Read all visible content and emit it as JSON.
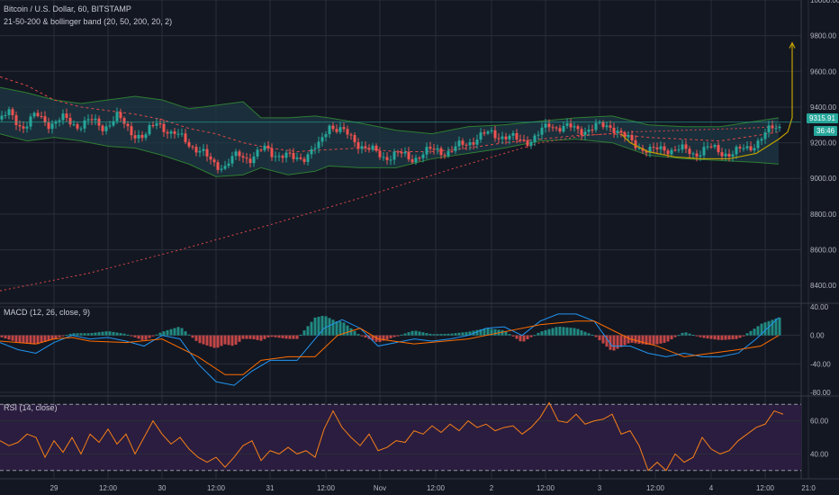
{
  "header": {
    "symbol": "Bitcoin / U.S. Dollar, 60, BITSTAMP",
    "study": "21-50-200 & bollinger band (20, 50, 200, 20, 2)"
  },
  "price_tags": {
    "last_price": "9315.91",
    "countdown": "36:46"
  },
  "panes": {
    "macd_label": "MACD (12, 26, close, 9)",
    "rsi_label": "RSI (14, close)"
  },
  "colors": {
    "background": "#131722",
    "grid": "#2a2e39",
    "up": "#26a69a",
    "down": "#ef5350",
    "bollinger_fill": "#1e3b46",
    "bollinger_line": "#2e7d32",
    "ma_red": "#e04848",
    "macd_line": "#2196f3",
    "signal_line": "#ff6d00",
    "rsi_line": "#f57f17",
    "rsi_bg": "#2b1d3f",
    "drawing": "#c0a000",
    "current_price_line": "#26a69a"
  },
  "chart_data": [
    {
      "type": "candlestick",
      "title": "Bitcoin / U.S. Dollar, 60, BITSTAMP",
      "ylim": [
        8300,
        10000
      ],
      "y_ticks": [
        "10000.00",
        "9800.00",
        "9600.00",
        "9400.00",
        "9200.00",
        "9000.00",
        "8800.00",
        "8600.00",
        "8400.00"
      ],
      "x_ticks": [
        "29",
        "12:00",
        "30",
        "12:00",
        "31",
        "12:00",
        "Nov",
        "12:00",
        "2",
        "12:00",
        "3",
        "12:00",
        "4",
        "12:00",
        "21:0"
      ],
      "last_price": 9315.91,
      "close_path": [
        [
          0,
          9330
        ],
        [
          10,
          9360
        ],
        [
          25,
          9290
        ],
        [
          40,
          9350
        ],
        [
          55,
          9310
        ],
        [
          70,
          9330
        ],
        [
          85,
          9300
        ],
        [
          100,
          9320
        ],
        [
          115,
          9290
        ],
        [
          130,
          9340
        ],
        [
          145,
          9270
        ],
        [
          160,
          9220
        ],
        [
          175,
          9330
        ],
        [
          190,
          9240
        ],
        [
          205,
          9230
        ],
        [
          220,
          9150
        ],
        [
          235,
          9100
        ],
        [
          250,
          9060
        ],
        [
          265,
          9140
        ],
        [
          280,
          9110
        ],
        [
          295,
          9170
        ],
        [
          310,
          9130
        ],
        [
          325,
          9110
        ],
        [
          340,
          9130
        ],
        [
          355,
          9180
        ],
        [
          365,
          9310
        ],
        [
          380,
          9260
        ],
        [
          395,
          9210
        ],
        [
          410,
          9160
        ],
        [
          425,
          9120
        ],
        [
          440,
          9140
        ],
        [
          455,
          9110
        ],
        [
          470,
          9140
        ],
        [
          485,
          9160
        ],
        [
          500,
          9150
        ],
        [
          515,
          9190
        ],
        [
          530,
          9230
        ],
        [
          545,
          9250
        ],
        [
          560,
          9240
        ],
        [
          575,
          9210
        ],
        [
          590,
          9220
        ],
        [
          600,
          9250
        ],
        [
          610,
          9300
        ],
        [
          625,
          9290
        ],
        [
          640,
          9270
        ],
        [
          655,
          9280
        ],
        [
          670,
          9290
        ],
        [
          680,
          9300
        ],
        [
          695,
          9220
        ],
        [
          710,
          9180
        ],
        [
          725,
          9150
        ],
        [
          740,
          9170
        ],
        [
          755,
          9160
        ],
        [
          770,
          9140
        ],
        [
          785,
          9170
        ],
        [
          800,
          9150
        ],
        [
          815,
          9140
        ],
        [
          830,
          9170
        ],
        [
          845,
          9220
        ],
        [
          860,
          9290
        ],
        [
          870,
          9300
        ]
      ],
      "bollinger_upper": [
        [
          0,
          9510
        ],
        [
          30,
          9480
        ],
        [
          60,
          9440
        ],
        [
          90,
          9420
        ],
        [
          120,
          9440
        ],
        [
          150,
          9460
        ],
        [
          180,
          9440
        ],
        [
          210,
          9390
        ],
        [
          240,
          9410
        ],
        [
          270,
          9430
        ],
        [
          290,
          9340
        ],
        [
          320,
          9340
        ],
        [
          350,
          9350
        ],
        [
          365,
          9340
        ],
        [
          400,
          9310
        ],
        [
          440,
          9270
        ],
        [
          480,
          9250
        ],
        [
          520,
          9290
        ],
        [
          560,
          9300
        ],
        [
          600,
          9320
        ],
        [
          640,
          9340
        ],
        [
          680,
          9350
        ],
        [
          720,
          9300
        ],
        [
          760,
          9290
        ],
        [
          800,
          9290
        ],
        [
          840,
          9320
        ],
        [
          865,
          9340
        ]
      ],
      "bollinger_lower": [
        [
          0,
          9250
        ],
        [
          30,
          9210
        ],
        [
          60,
          9230
        ],
        [
          90,
          9210
        ],
        [
          120,
          9180
        ],
        [
          150,
          9170
        ],
        [
          180,
          9130
        ],
        [
          210,
          9080
        ],
        [
          240,
          9010
        ],
        [
          270,
          9020
        ],
        [
          290,
          9060
        ],
        [
          320,
          9020
        ],
        [
          350,
          9040
        ],
        [
          365,
          9070
        ],
        [
          400,
          9060
        ],
        [
          440,
          9060
        ],
        [
          480,
          9110
        ],
        [
          520,
          9140
        ],
        [
          560,
          9170
        ],
        [
          600,
          9210
        ],
        [
          640,
          9220
        ],
        [
          680,
          9200
        ],
        [
          720,
          9130
        ],
        [
          760,
          9110
        ],
        [
          800,
          9100
        ],
        [
          840,
          9090
        ],
        [
          865,
          9080
        ]
      ],
      "ma_short": [
        [
          0,
          9570
        ],
        [
          30,
          9520
        ],
        [
          60,
          9440
        ],
        [
          90,
          9400
        ],
        [
          120,
          9380
        ],
        [
          150,
          9360
        ],
        [
          180,
          9330
        ],
        [
          210,
          9280
        ],
        [
          240,
          9250
        ],
        [
          270,
          9200
        ],
        [
          300,
          9170
        ],
        [
          330,
          9150
        ],
        [
          360,
          9160
        ],
        [
          400,
          9170
        ],
        [
          440,
          9150
        ],
        [
          480,
          9150
        ],
        [
          520,
          9170
        ],
        [
          560,
          9200
        ],
        [
          600,
          9220
        ],
        [
          640,
          9240
        ],
        [
          680,
          9250
        ],
        [
          720,
          9230
        ],
        [
          760,
          9220
        ],
        [
          800,
          9210
        ],
        [
          840,
          9240
        ],
        [
          865,
          9260
        ]
      ],
      "ma_long": [
        [
          0,
          8370
        ],
        [
          100,
          8470
        ],
        [
          200,
          8600
        ],
        [
          300,
          8740
        ],
        [
          400,
          8890
        ],
        [
          500,
          9050
        ],
        [
          560,
          9140
        ],
        [
          600,
          9200
        ],
        [
          650,
          9240
        ],
        [
          700,
          9260
        ],
        [
          760,
          9270
        ],
        [
          820,
          9280
        ],
        [
          865,
          9290
        ]
      ],
      "drawing_path": [
        [
          690,
          9250
        ],
        [
          700,
          9200
        ],
        [
          720,
          9150
        ],
        [
          750,
          9120
        ],
        [
          780,
          9110
        ],
        [
          810,
          9110
        ],
        [
          840,
          9140
        ],
        [
          865,
          9220
        ],
        [
          875,
          9260
        ],
        [
          880,
          9340
        ],
        [
          880,
          9760
        ]
      ]
    },
    {
      "type": "bar",
      "title": "MACD (12, 26, close, 9)",
      "ylim": [
        -85,
        45
      ],
      "y_ticks": [
        "40.00",
        "0.00",
        "-40.00",
        "-80.00"
      ],
      "macd": [
        [
          0,
          -10
        ],
        [
          20,
          -20
        ],
        [
          40,
          -25
        ],
        [
          60,
          -10
        ],
        [
          80,
          0
        ],
        [
          100,
          -5
        ],
        [
          120,
          -3
        ],
        [
          140,
          -8
        ],
        [
          160,
          -15
        ],
        [
          180,
          0
        ],
        [
          200,
          -5
        ],
        [
          220,
          -40
        ],
        [
          240,
          -65
        ],
        [
          260,
          -70
        ],
        [
          280,
          -50
        ],
        [
          300,
          -35
        ],
        [
          330,
          -35
        ],
        [
          360,
          10
        ],
        [
          380,
          22
        ],
        [
          400,
          10
        ],
        [
          420,
          -15
        ],
        [
          440,
          -10
        ],
        [
          460,
          -5
        ],
        [
          480,
          -8
        ],
        [
          500,
          -5
        ],
        [
          520,
          0
        ],
        [
          540,
          10
        ],
        [
          560,
          12
        ],
        [
          580,
          0
        ],
        [
          600,
          20
        ],
        [
          620,
          30
        ],
        [
          640,
          30
        ],
        [
          660,
          20
        ],
        [
          680,
          -15
        ],
        [
          700,
          -15
        ],
        [
          720,
          -25
        ],
        [
          740,
          -30
        ],
        [
          760,
          -25
        ],
        [
          780,
          -30
        ],
        [
          800,
          -30
        ],
        [
          820,
          -25
        ],
        [
          840,
          -5
        ],
        [
          865,
          25
        ]
      ],
      "signal": [
        [
          0,
          -8
        ],
        [
          20,
          -10
        ],
        [
          40,
          -12
        ],
        [
          60,
          -5
        ],
        [
          80,
          -3
        ],
        [
          100,
          -8
        ],
        [
          140,
          -10
        ],
        [
          180,
          -5
        ],
        [
          220,
          -30
        ],
        [
          250,
          -55
        ],
        [
          270,
          -55
        ],
        [
          290,
          -35
        ],
        [
          320,
          -30
        ],
        [
          350,
          -30
        ],
        [
          375,
          0
        ],
        [
          400,
          10
        ],
        [
          420,
          -5
        ],
        [
          460,
          -12
        ],
        [
          520,
          -5
        ],
        [
          560,
          5
        ],
        [
          600,
          15
        ],
        [
          640,
          20
        ],
        [
          660,
          20
        ],
        [
          700,
          -5
        ],
        [
          730,
          -15
        ],
        [
          760,
          -30
        ],
        [
          790,
          -25
        ],
        [
          820,
          -20
        ],
        [
          845,
          -15
        ],
        [
          865,
          0
        ]
      ]
    },
    {
      "type": "line",
      "title": "RSI (14, close)",
      "ylim": [
        25,
        75
      ],
      "y_ticks": [
        "60.00",
        "40.00"
      ],
      "rsi": [
        [
          0,
          48
        ],
        [
          10,
          45
        ],
        [
          20,
          47
        ],
        [
          30,
          52
        ],
        [
          40,
          50
        ],
        [
          50,
          38
        ],
        [
          60,
          48
        ],
        [
          70,
          41
        ],
        [
          80,
          50
        ],
        [
          90,
          40
        ],
        [
          100,
          52
        ],
        [
          110,
          47
        ],
        [
          120,
          55
        ],
        [
          130,
          46
        ],
        [
          140,
          52
        ],
        [
          150,
          40
        ],
        [
          160,
          50
        ],
        [
          170,
          60
        ],
        [
          180,
          52
        ],
        [
          190,
          46
        ],
        [
          200,
          50
        ],
        [
          210,
          43
        ],
        [
          220,
          38
        ],
        [
          230,
          35
        ],
        [
          240,
          38
        ],
        [
          250,
          32
        ],
        [
          260,
          38
        ],
        [
          270,
          45
        ],
        [
          280,
          48
        ],
        [
          290,
          36
        ],
        [
          300,
          42
        ],
        [
          310,
          40
        ],
        [
          320,
          44
        ],
        [
          330,
          40
        ],
        [
          340,
          42
        ],
        [
          350,
          38
        ],
        [
          360,
          55
        ],
        [
          370,
          66
        ],
        [
          380,
          56
        ],
        [
          390,
          50
        ],
        [
          400,
          45
        ],
        [
          410,
          52
        ],
        [
          420,
          42
        ],
        [
          430,
          44
        ],
        [
          440,
          48
        ],
        [
          450,
          47
        ],
        [
          460,
          54
        ],
        [
          470,
          52
        ],
        [
          480,
          57
        ],
        [
          490,
          53
        ],
        [
          500,
          58
        ],
        [
          510,
          54
        ],
        [
          520,
          60
        ],
        [
          530,
          56
        ],
        [
          540,
          58
        ],
        [
          550,
          54
        ],
        [
          560,
          56
        ],
        [
          570,
          57
        ],
        [
          580,
          52
        ],
        [
          590,
          56
        ],
        [
          600,
          62
        ],
        [
          610,
          71
        ],
        [
          620,
          60
        ],
        [
          630,
          59
        ],
        [
          640,
          64
        ],
        [
          650,
          58
        ],
        [
          660,
          60
        ],
        [
          670,
          61
        ],
        [
          680,
          64
        ],
        [
          690,
          52
        ],
        [
          700,
          54
        ],
        [
          710,
          45
        ],
        [
          720,
          30
        ],
        [
          730,
          35
        ],
        [
          740,
          30
        ],
        [
          750,
          40
        ],
        [
          760,
          35
        ],
        [
          770,
          38
        ],
        [
          780,
          50
        ],
        [
          790,
          43
        ],
        [
          800,
          40
        ],
        [
          810,
          42
        ],
        [
          820,
          48
        ],
        [
          830,
          52
        ],
        [
          840,
          56
        ],
        [
          850,
          58
        ],
        [
          860,
          66
        ],
        [
          870,
          64
        ]
      ]
    }
  ]
}
